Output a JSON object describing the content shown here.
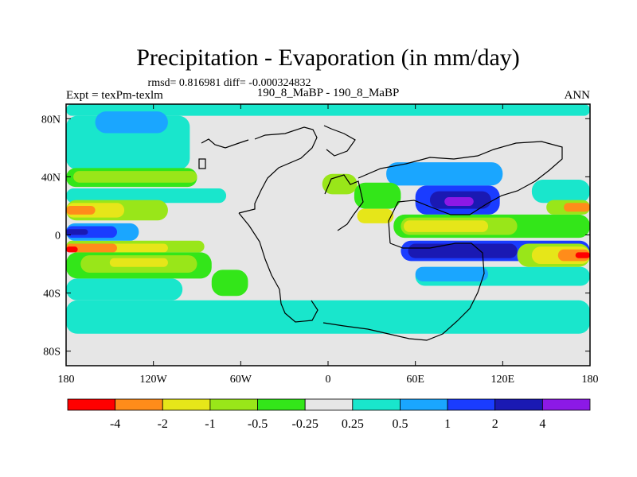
{
  "chart_data": {
    "type": "contour-map",
    "title": "Precipitation - Evaporation (in mm/day)",
    "stats_line": "rmsd= 0.816981 diff= -0.000324832",
    "experiment_label": "Expt = texPm-texlm",
    "comparison_label": "190_8_MaBP - 190_8_MaBP",
    "season_label": "ANN",
    "x_range": [
      -180,
      180
    ],
    "y_range": [
      -90,
      90
    ],
    "x_ticks": [
      {
        "value": -180,
        "label": "180"
      },
      {
        "value": -120,
        "label": "120W"
      },
      {
        "value": -60,
        "label": "60W"
      },
      {
        "value": 0,
        "label": "0"
      },
      {
        "value": 60,
        "label": "60E"
      },
      {
        "value": 120,
        "label": "120E"
      },
      {
        "value": 180,
        "label": "180"
      }
    ],
    "y_ticks": [
      {
        "value": 80,
        "label": "80N"
      },
      {
        "value": 40,
        "label": "40N"
      },
      {
        "value": 0,
        "label": "0"
      },
      {
        "value": -40,
        "label": "40S"
      },
      {
        "value": -80,
        "label": "80S"
      }
    ],
    "contour_levels": [
      "-4",
      "-2",
      "-1",
      "-0.5",
      "-0.25",
      "0.25",
      "0.5",
      "1",
      "2",
      "4"
    ],
    "colorbar_colors": [
      "#ff0000",
      "#ff8c1a",
      "#e6e619",
      "#99e619",
      "#33e619",
      "#e6e6e6",
      "#19e6cc",
      "#1aa6ff",
      "#1a3cff",
      "#1a19b3",
      "#8c19e6"
    ],
    "background_color": "#e6e6e6",
    "regions": [
      {
        "level": "0.25",
        "lon": [
          -180,
          180
        ],
        "lat": [
          82,
          90
        ]
      },
      {
        "level": "0.25",
        "lon": [
          -180,
          -95
        ],
        "lat": [
          45,
          82
        ]
      },
      {
        "level": "0.25",
        "lon": [
          -180,
          180
        ],
        "lat": [
          -68,
          -45
        ]
      },
      {
        "level": "0.25",
        "lon": [
          -180,
          -100
        ],
        "lat": [
          -45,
          -30
        ]
      },
      {
        "level": "0.25",
        "lon": [
          60,
          180
        ],
        "lat": [
          -35,
          -22
        ]
      },
      {
        "level": "0.25",
        "lon": [
          140,
          180
        ],
        "lat": [
          22,
          38
        ]
      },
      {
        "level": "0.25",
        "lon": [
          -180,
          -70
        ],
        "lat": [
          22,
          32
        ]
      },
      {
        "level": "0.5",
        "lon": [
          -160,
          -110
        ],
        "lat": [
          70,
          85
        ]
      },
      {
        "level": "-0.25",
        "lon": [
          -180,
          -90
        ],
        "lat": [
          33,
          46
        ]
      },
      {
        "level": "-0.5",
        "lon": [
          -175,
          -90
        ],
        "lat": [
          36,
          44
        ]
      },
      {
        "level": "-0.25",
        "lon": [
          -180,
          -80
        ],
        "lat": [
          -30,
          -12
        ]
      },
      {
        "level": "-0.5",
        "lon": [
          -170,
          -90
        ],
        "lat": [
          -26,
          -14
        ]
      },
      {
        "level": "-1",
        "lon": [
          -150,
          -110
        ],
        "lat": [
          -22,
          -16
        ]
      },
      {
        "level": "-0.5",
        "lon": [
          -180,
          -110
        ],
        "lat": [
          10,
          24
        ]
      },
      {
        "level": "-1",
        "lon": [
          -180,
          -140
        ],
        "lat": [
          12,
          22
        ]
      },
      {
        "level": "-2",
        "lon": [
          -180,
          -160
        ],
        "lat": [
          14,
          20
        ]
      },
      {
        "level": "-0.5",
        "lon": [
          -180,
          -85
        ],
        "lat": [
          -12,
          -4
        ]
      },
      {
        "level": "-1",
        "lon": [
          -180,
          -110
        ],
        "lat": [
          -12,
          -6
        ]
      },
      {
        "level": "-2",
        "lon": [
          -180,
          -145
        ],
        "lat": [
          -12,
          -6
        ]
      },
      {
        "level": "-4",
        "lon": [
          -180,
          -172
        ],
        "lat": [
          -12,
          -8
        ]
      },
      {
        "level": "0.5",
        "lon": [
          -180,
          -130
        ],
        "lat": [
          -4,
          8
        ]
      },
      {
        "level": "1",
        "lon": [
          -180,
          -145
        ],
        "lat": [
          -2,
          6
        ]
      },
      {
        "level": "2",
        "lon": [
          -180,
          -165
        ],
        "lat": [
          0,
          4
        ]
      },
      {
        "level": "0.5",
        "lon": [
          40,
          120
        ],
        "lat": [
          34,
          50
        ]
      },
      {
        "level": "1",
        "lon": [
          60,
          118
        ],
        "lat": [
          14,
          34
        ]
      },
      {
        "level": "2",
        "lon": [
          70,
          112
        ],
        "lat": [
          18,
          30
        ]
      },
      {
        "level": "4",
        "lon": [
          80,
          100
        ],
        "lat": [
          20,
          26
        ]
      },
      {
        "level": "-0.25",
        "lon": [
          45,
          180
        ],
        "lat": [
          -2,
          14
        ]
      },
      {
        "level": "-0.5",
        "lon": [
          50,
          130
        ],
        "lat": [
          0,
          12
        ]
      },
      {
        "level": "-1",
        "lon": [
          52,
          110
        ],
        "lat": [
          2,
          10
        ]
      },
      {
        "level": "-0.5",
        "lon": [
          150,
          180
        ],
        "lat": [
          14,
          24
        ]
      },
      {
        "level": "-2",
        "lon": [
          162,
          180
        ],
        "lat": [
          16,
          22
        ]
      },
      {
        "level": "1",
        "lon": [
          50,
          180
        ],
        "lat": [
          -18,
          -4
        ]
      },
      {
        "level": "2",
        "lon": [
          55,
          130
        ],
        "lat": [
          -16,
          -6
        ]
      },
      {
        "level": "-0.5",
        "lon": [
          130,
          180
        ],
        "lat": [
          -22,
          -6
        ]
      },
      {
        "level": "-1",
        "lon": [
          140,
          180
        ],
        "lat": [
          -20,
          -8
        ]
      },
      {
        "level": "-2",
        "lon": [
          158,
          180
        ],
        "lat": [
          -18,
          -10
        ]
      },
      {
        "level": "-4",
        "lon": [
          170,
          180
        ],
        "lat": [
          -16,
          -12
        ]
      },
      {
        "level": "-0.5",
        "lon": [
          -4,
          20
        ],
        "lat": [
          28,
          42
        ]
      },
      {
        "level": "-0.25",
        "lon": [
          18,
          50
        ],
        "lat": [
          18,
          36
        ]
      },
      {
        "level": "-1",
        "lon": [
          20,
          45
        ],
        "lat": [
          8,
          18
        ]
      },
      {
        "level": "0.5",
        "lon": [
          60,
          110
        ],
        "lat": [
          -32,
          -22
        ]
      },
      {
        "level": "-0.25",
        "lon": [
          -80,
          -55
        ],
        "lat": [
          -42,
          -24
        ]
      }
    ]
  }
}
